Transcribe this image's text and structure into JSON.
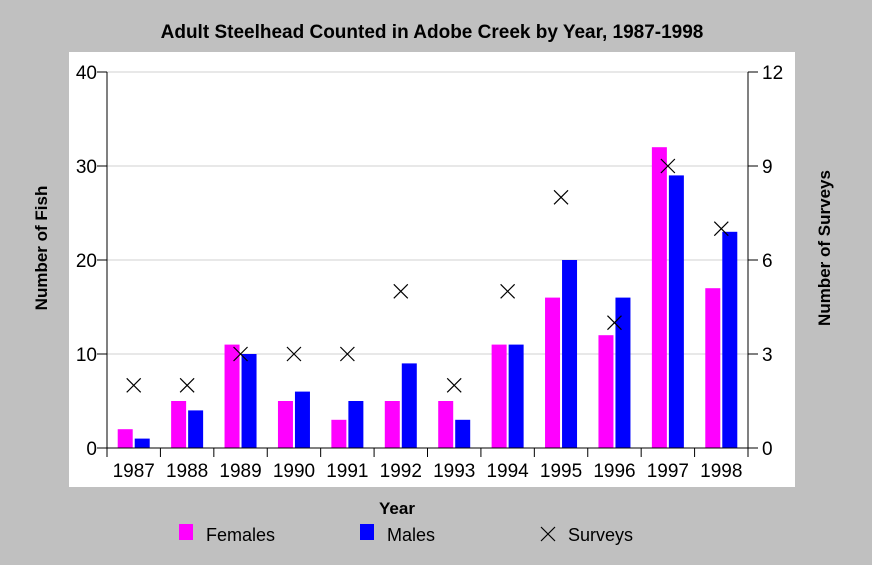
{
  "chart_data": {
    "type": "bar",
    "title": "Adult Steelhead Counted in Adobe Creek by Year, 1987-1998",
    "xlabel": "Year",
    "ylabel": "Number of Fish",
    "y2label": "Number of Surveys",
    "categories": [
      "1987",
      "1988",
      "1989",
      "1990",
      "1991",
      "1992",
      "1993",
      "1994",
      "1995",
      "1996",
      "1997",
      "1998"
    ],
    "ylim": [
      0,
      40
    ],
    "y2lim": [
      0,
      12
    ],
    "yticks": [
      0,
      10,
      20,
      30,
      40
    ],
    "y2ticks": [
      0,
      3,
      6,
      9,
      12
    ],
    "grid": true,
    "legend_position": "bottom",
    "series": [
      {
        "name": "Females",
        "kind": "bar",
        "axis": "left",
        "color": "#ff00ff",
        "values": [
          2,
          5,
          11,
          5,
          3,
          5,
          5,
          11,
          16,
          12,
          32,
          17
        ]
      },
      {
        "name": "Males",
        "kind": "bar",
        "axis": "left",
        "color": "#0000ff",
        "values": [
          1,
          4,
          10,
          6,
          5,
          9,
          3,
          11,
          20,
          16,
          29,
          23
        ]
      },
      {
        "name": "Surveys",
        "kind": "marker",
        "marker": "x",
        "axis": "right",
        "color": "#000000",
        "values": [
          2,
          2,
          3,
          3,
          3,
          5,
          2,
          5,
          8,
          4,
          9,
          7
        ]
      }
    ]
  }
}
